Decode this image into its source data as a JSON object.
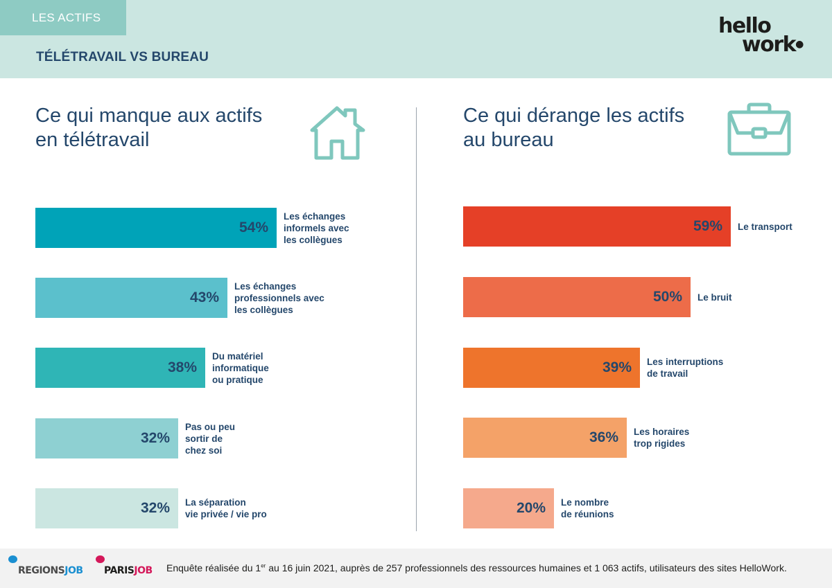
{
  "header": {
    "tag": "LES ACTIFS",
    "title": "TÉLÉTRAVAIL VS BUREAU",
    "logo_line1": "hello",
    "logo_line2": "work",
    "brand_color": "#24476b"
  },
  "left_panel": {
    "title_line1": "Ce qui manque aux actifs",
    "title_line2": "en télétravail",
    "icon": "house-icon"
  },
  "right_panel": {
    "title_line1": "Ce qui dérange les actifs",
    "title_line2": "au bureau",
    "icon": "briefcase-icon"
  },
  "chart_data": [
    {
      "type": "bar",
      "orientation": "horizontal",
      "title": "Ce qui manque aux actifs en télétravail",
      "categories": [
        "Les échanges\ninformels avec\nles collègues",
        "Les échanges\nprofessionnels avec\nles collègues",
        "Du matériel\ninformatique\nou pratique",
        "Pas ou peu\nsortir de\nchez soi",
        "La séparation\nvie privée / vie pro"
      ],
      "values": [
        54,
        43,
        38,
        32,
        32
      ],
      "value_labels": [
        "54%",
        "43%",
        "38%",
        "32%",
        "32%"
      ],
      "colors": [
        "#00a3b8",
        "#5bc0cc",
        "#2fb5b6",
        "#8ed0d2",
        "#cbe6e1"
      ],
      "unit": "%",
      "xlim": [
        0,
        100
      ]
    },
    {
      "type": "bar",
      "orientation": "horizontal",
      "title": "Ce qui dérange les actifs au bureau",
      "categories": [
        "Le transport",
        "Le bruit",
        "Les interruptions\nde travail",
        "Les horaires\ntrop rigides",
        "Le nombre\nde réunions"
      ],
      "values": [
        59,
        50,
        39,
        36,
        20
      ],
      "value_labels": [
        "59%",
        "50%",
        "39%",
        "36%",
        "20%"
      ],
      "colors": [
        "#e54027",
        "#ed6c49",
        "#ee742c",
        "#f4a268",
        "#f5a98c"
      ],
      "unit": "%",
      "xlim": [
        0,
        100
      ]
    }
  ],
  "footer": {
    "source_logo_1": {
      "part1": "REGIONS",
      "part2": "JOB",
      "color": "#1a8fd1"
    },
    "source_logo_2": {
      "part1": "PARIS",
      "part2": "JOB",
      "color": "#d4185a"
    },
    "note_before": "Enquête réalisée du 1",
    "note_sup": "er",
    "note_after": " au 16 juin 2021, auprès de 257 professionnels des ressources humaines et 1 063 actifs, utilisateurs des sites HelloWork."
  }
}
